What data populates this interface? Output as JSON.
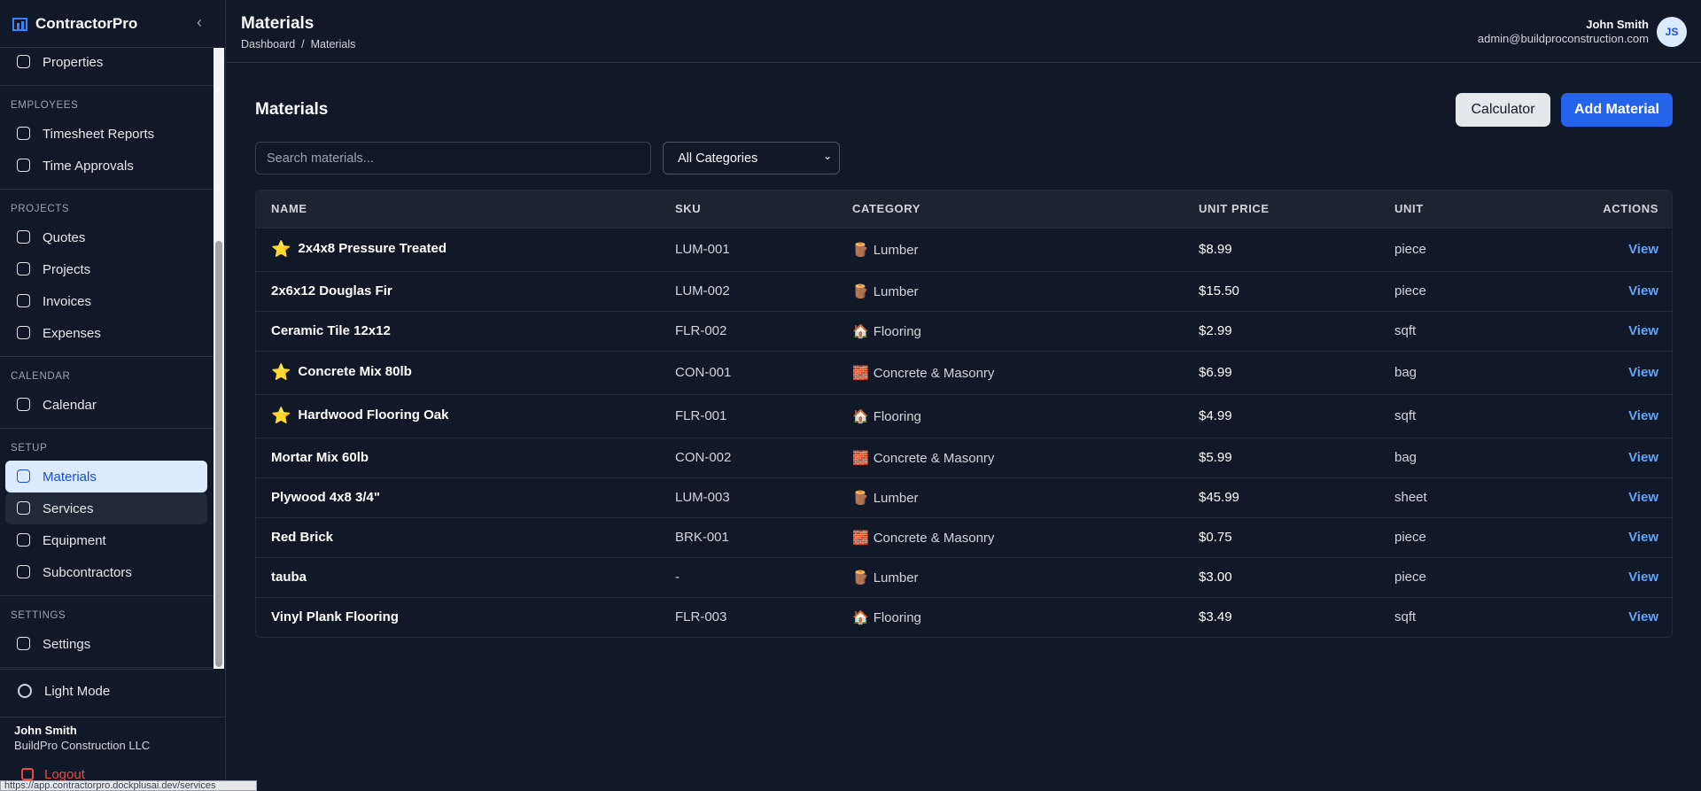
{
  "sidebar": {
    "brand": "ContractorPro",
    "sections": [
      {
        "items": [
          {
            "label": "Properties"
          }
        ]
      },
      {
        "label": "EMPLOYEES",
        "items": [
          {
            "label": "Timesheet Reports"
          },
          {
            "label": "Time Approvals"
          }
        ]
      },
      {
        "label": "PROJECTS",
        "items": [
          {
            "label": "Quotes"
          },
          {
            "label": "Projects"
          },
          {
            "label": "Invoices"
          },
          {
            "label": "Expenses"
          }
        ]
      },
      {
        "label": "CALENDAR",
        "items": [
          {
            "label": "Calendar"
          }
        ]
      },
      {
        "label": "SETUP",
        "items": [
          {
            "label": "Materials",
            "active": true
          },
          {
            "label": "Services",
            "hovered": true
          },
          {
            "label": "Equipment"
          },
          {
            "label": "Subcontractors"
          }
        ]
      },
      {
        "label": "SETTINGS",
        "items": [
          {
            "label": "Settings"
          }
        ]
      }
    ],
    "theme_toggle": "Light Mode",
    "user": {
      "name": "John Smith",
      "company": "BuildPro Construction LLC"
    },
    "logout": "Logout"
  },
  "status_url": "https://app.contractorpro.dockplusai.dev/services",
  "header": {
    "title": "Materials",
    "breadcrumb": [
      "Dashboard",
      "/",
      "Materials"
    ],
    "user": {
      "name": "John Smith",
      "email": "admin@buildproconstruction.com",
      "initials": "JS"
    }
  },
  "page": {
    "heading": "Materials",
    "buttons": [
      "Calculator",
      "Add Material"
    ],
    "search_placeholder": "Search materials...",
    "filter": "All Categories",
    "table": {
      "columns": [
        "NAME",
        "SKU",
        "CATEGORY",
        "UNIT PRICE",
        "UNIT",
        "ACTIONS"
      ],
      "rows": [
        {
          "star": "⭐",
          "name": "2x4x8 Pressure Treated",
          "sku": "LUM-001",
          "icon": "🪵",
          "category": "Lumber",
          "price": "$8.99",
          "unit": "piece",
          "action": "View"
        },
        {
          "name": "2x6x12 Douglas Fir",
          "sku": "LUM-002",
          "icon": "🪵",
          "category": "Lumber",
          "price": "$15.50",
          "unit": "piece",
          "action": "View"
        },
        {
          "name": "Ceramic Tile 12x12",
          "sku": "FLR-002",
          "icon": "🏠",
          "category": "Flooring",
          "price": "$2.99",
          "unit": "sqft",
          "action": "View"
        },
        {
          "star": "⭐",
          "name": "Concrete Mix 80lb",
          "sku": "CON-001",
          "icon": "🧱",
          "category": "Concrete & Masonry",
          "price": "$6.99",
          "unit": "bag",
          "action": "View"
        },
        {
          "star": "⭐",
          "name": "Hardwood Flooring Oak",
          "sku": "FLR-001",
          "icon": "🏠",
          "category": "Flooring",
          "price": "$4.99",
          "unit": "sqft",
          "action": "View"
        },
        {
          "name": "Mortar Mix 60lb",
          "sku": "CON-002",
          "icon": "🧱",
          "category": "Concrete & Masonry",
          "price": "$5.99",
          "unit": "bag",
          "action": "View"
        },
        {
          "name": "Plywood 4x8 3/4\"",
          "sku": "LUM-003",
          "icon": "🪵",
          "category": "Lumber",
          "price": "$45.99",
          "unit": "sheet",
          "action": "View"
        },
        {
          "name": "Red Brick",
          "sku": "BRK-001",
          "icon": "🧱",
          "category": "Concrete & Masonry",
          "price": "$0.75",
          "unit": "piece",
          "action": "View"
        },
        {
          "name": "tauba",
          "sku": "-",
          "icon": "🪵",
          "category": "Lumber",
          "price": "$3.00",
          "unit": "piece",
          "action": "View"
        },
        {
          "name": "Vinyl Plank Flooring",
          "sku": "FLR-003",
          "icon": "🏠",
          "category": "Flooring",
          "price": "$3.49",
          "unit": "sqft",
          "action": "View"
        }
      ]
    }
  }
}
